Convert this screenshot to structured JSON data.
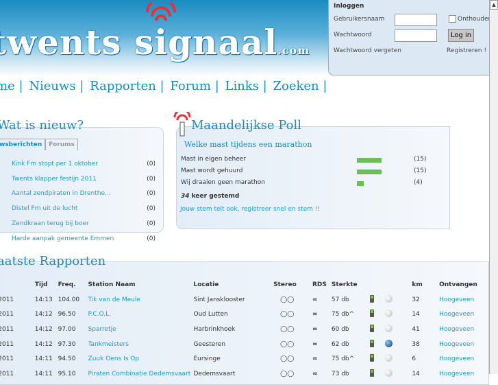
{
  "header": {
    "logo": "twents signaal",
    "logo_suffix": ".com"
  },
  "nav": [
    "me |",
    "Nieuws |",
    "Rapporten |",
    "Forum |",
    "Links |",
    "Zoeken |"
  ],
  "login": {
    "title": "Inloggen",
    "username_label": "Gebruikersnaam",
    "password_label": "Wachtwoord",
    "remember_label": "Onthouden",
    "login_button": "Log in",
    "forgot_link": "Wachtwoord vergeten",
    "register_link": "Registreren !"
  },
  "news": {
    "title": "Wat is nieuw?",
    "tabs": [
      "wsberichten",
      "Forums"
    ],
    "items": [
      {
        "title": "Kink Fm stopt per 1 oktober",
        "count": "(0)"
      },
      {
        "title": "Twents klapper festijn 2011",
        "count": "(0)"
      },
      {
        "title": "Aantal zendpiraten in Drenthe...",
        "count": "(0)"
      },
      {
        "title": "Distel Fm uit de lucht",
        "count": "(0)"
      },
      {
        "title": "Zendkraan terug bij boer",
        "count": "(0)"
      },
      {
        "title": "Harde aanpak gemeente Emmen",
        "count": "(0)"
      }
    ]
  },
  "poll": {
    "title": "Maandelijkse Poll",
    "question": "Welke mast tijdens een marathon",
    "options": [
      {
        "label": "Mast in eigen beheer",
        "votes": 15,
        "count": "(15)"
      },
      {
        "label": "Mast wordt gehuurd",
        "votes": 15,
        "count": "(15)"
      },
      {
        "label": "Wij draaien geen marathon",
        "votes": 4,
        "count": "(4)"
      }
    ],
    "total": "34",
    "total_suffix": " keer gestemd",
    "cta": "Jouw stem telt ook, registreer snel en stem !!",
    "bar_color": "#6abf5a"
  },
  "reports": {
    "title": "aatste Rapporten",
    "columns": [
      "n",
      "Tijd",
      "Freq.",
      "Station Naam",
      "Locatie",
      "Stereo",
      "RDS",
      "Sterkte",
      "",
      "",
      "km",
      "Ontvangen"
    ],
    "rows": [
      {
        "date": "-2011",
        "time": "14:13",
        "freq": "104.00",
        "station": "Tik van de Meule",
        "loc": "Sint Jansklooster",
        "db": "57 db",
        "globe": false,
        "km": "32",
        "rx": "Hoogeveen"
      },
      {
        "date": "-2011",
        "time": "14:12",
        "freq": "96.50",
        "station": "P.C.O.L.",
        "loc": "Oud Lutten",
        "db": "75 db^",
        "globe": false,
        "km": "14",
        "rx": "Hoogeveen"
      },
      {
        "date": "-2011",
        "time": "14:12",
        "freq": "97.00",
        "station": "Sparretje",
        "loc": "Harbrinkhoek",
        "db": "60 db",
        "globe": false,
        "km": "41",
        "rx": "Hoogeveen"
      },
      {
        "date": "-2011",
        "time": "14:12",
        "freq": "97.30",
        "station": "Tankmeisters",
        "loc": "Geesteren",
        "db": "62 db",
        "globe": true,
        "km": "38",
        "rx": "Hoogeveen"
      },
      {
        "date": "-2011",
        "time": "14:11",
        "freq": "94.50",
        "station": "Zuuk Oens Is Op",
        "loc": "Eursinge",
        "db": "75 db^",
        "globe": false,
        "km": "6",
        "rx": "Hoogeveen"
      },
      {
        "date": "-2011",
        "time": "14:11",
        "freq": "95.10",
        "station": "Piraten Combinatie Dedemsvaart",
        "loc": "Dedemsvaart",
        "db": "73 db",
        "globe": false,
        "km": "14",
        "rx": "Hoogeveen"
      }
    ]
  },
  "colors": {
    "accent": "#1a8cc0",
    "link": "#1a9ad0"
  }
}
